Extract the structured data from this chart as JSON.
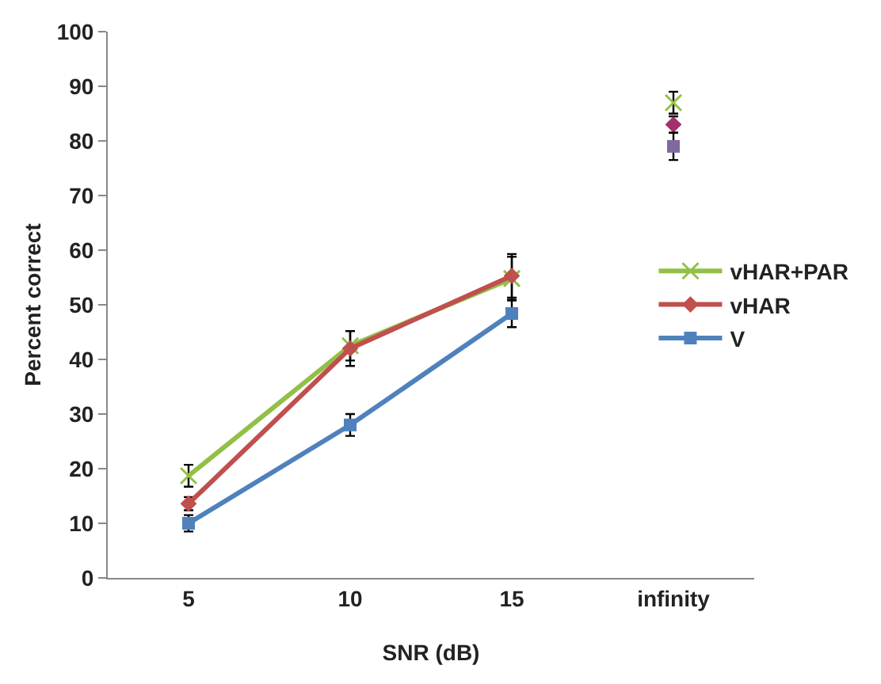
{
  "chart_data": {
    "type": "line",
    "xlabel": "SNR (dB)",
    "ylabel": "Percent correct",
    "categories": [
      "5",
      "10",
      "15",
      "infinity"
    ],
    "ylim": [
      0,
      100
    ],
    "yticks": [
      0,
      10,
      20,
      30,
      40,
      50,
      60,
      70,
      80,
      90,
      100
    ],
    "grid": false,
    "legend": "right",
    "series": [
      {
        "name": "vHAR+PAR",
        "color": "#92c047",
        "marker": "cross",
        "values": [
          18.7,
          42.5,
          54.8,
          null
        ],
        "errors": [
          2,
          2.7,
          4,
          null
        ]
      },
      {
        "name": "vHAR",
        "color": "#c0504d",
        "marker": "diamond",
        "values": [
          13.6,
          42,
          55.3,
          null
        ],
        "errors": [
          1.2,
          3.2,
          4,
          null
        ]
      },
      {
        "name": "V",
        "color": "#4f81bd",
        "marker": "square",
        "values": [
          10,
          28,
          48.4,
          null
        ],
        "errors": [
          1.5,
          2,
          2.5,
          null
        ]
      },
      {
        "type": "scatter",
        "color": "#92c047",
        "marker": "cross",
        "values": [
          null,
          null,
          null,
          87
        ],
        "errors": [
          null,
          null,
          null,
          2
        ]
      },
      {
        "type": "scatter",
        "color": "#a3306c",
        "marker": "diamond",
        "values": [
          null,
          null,
          null,
          83
        ],
        "errors": [
          null,
          null,
          null,
          1.5
        ]
      },
      {
        "type": "scatter",
        "color": "#7f6a9f",
        "marker": "square",
        "values": [
          null,
          null,
          null,
          79
        ],
        "errors": [
          null,
          null,
          null,
          2.5
        ]
      }
    ]
  }
}
